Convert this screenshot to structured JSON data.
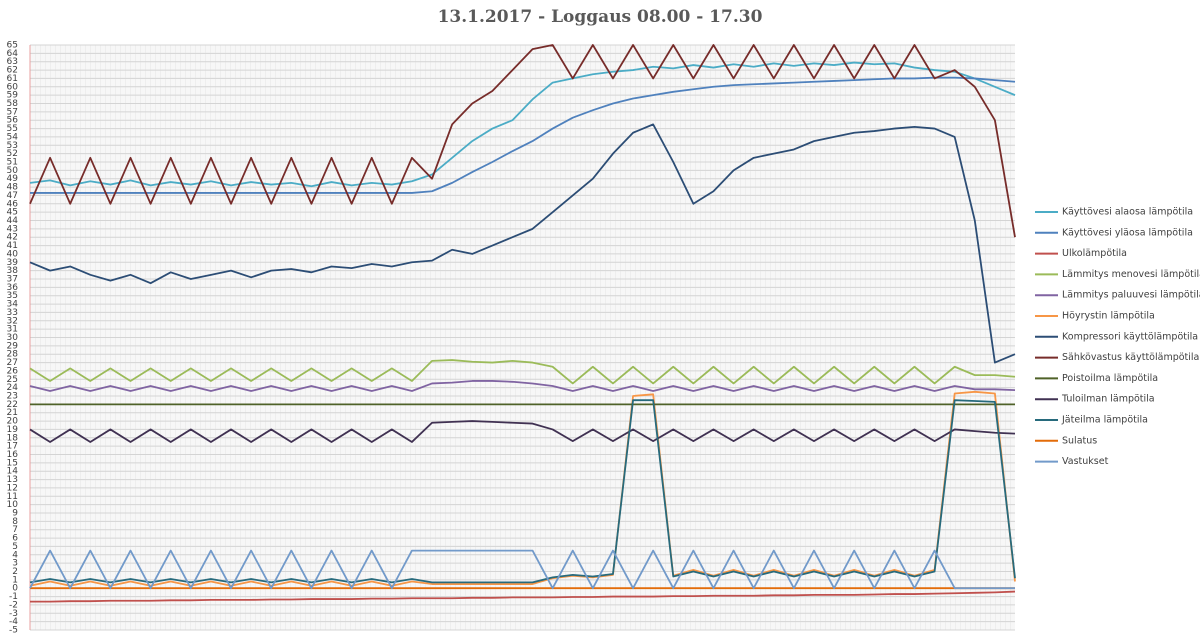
{
  "chart_data": {
    "type": "line",
    "title": "13.1.2017 - Loggaus 08.00 - 17.30",
    "ylim": [
      -5,
      65
    ],
    "yticks": [
      -5,
      -4,
      -3,
      -2,
      -1,
      0,
      1,
      2,
      3,
      4,
      5,
      6,
      7,
      8,
      9,
      10,
      11,
      12,
      13,
      14,
      15,
      16,
      17,
      18,
      19,
      20,
      21,
      22,
      23,
      24,
      25,
      26,
      27,
      28,
      29,
      30,
      31,
      32,
      33,
      34,
      35,
      36,
      37,
      38,
      39,
      40,
      41,
      42,
      43,
      44,
      45,
      46,
      47,
      48,
      49,
      50,
      51,
      52,
      53,
      54,
      55,
      56,
      57,
      58,
      59,
      60,
      61,
      62,
      63,
      64,
      65
    ],
    "grid": true,
    "legend": "right",
    "series": [
      {
        "name": "Käyttövesi alaosa lämpötila",
        "color": "#4bacc6",
        "values": [
          48.5,
          48.8,
          48.2,
          48.7,
          48.3,
          48.8,
          48.2,
          48.6,
          48.3,
          48.7,
          48.2,
          48.6,
          48.3,
          48.5,
          48.1,
          48.6,
          48.2,
          48.5,
          48.3,
          48.7,
          49.5,
          51.5,
          53.5,
          55,
          56,
          58.5,
          60.5,
          61,
          61.5,
          61.8,
          62,
          62.4,
          62.2,
          62.6,
          62.3,
          62.7,
          62.4,
          62.8,
          62.5,
          62.8,
          62.6,
          62.9,
          62.7,
          62.8,
          62.3,
          62,
          61.8,
          61,
          60,
          59
        ]
      },
      {
        "name": "Käyttövesi yläosa lämpötila",
        "color": "#4f81bd",
        "values": [
          47.3,
          47.3,
          47.3,
          47.3,
          47.3,
          47.3,
          47.3,
          47.3,
          47.3,
          47.3,
          47.3,
          47.3,
          47.3,
          47.3,
          47.3,
          47.3,
          47.3,
          47.3,
          47.3,
          47.3,
          47.5,
          48.5,
          49.8,
          51,
          52.3,
          53.5,
          55,
          56.3,
          57.2,
          58,
          58.6,
          59,
          59.4,
          59.7,
          60,
          60.2,
          60.3,
          60.4,
          60.5,
          60.6,
          60.7,
          60.8,
          60.9,
          61,
          61,
          61.1,
          61.1,
          61,
          60.8,
          60.6
        ]
      },
      {
        "name": "Ulkolämpötila",
        "color": "#c0504d",
        "values": [
          -1.6,
          -1.6,
          -1.55,
          -1.55,
          -1.5,
          -1.5,
          -1.5,
          -1.45,
          -1.45,
          -1.4,
          -1.4,
          -1.4,
          -1.35,
          -1.35,
          -1.3,
          -1.3,
          -1.3,
          -1.25,
          -1.25,
          -1.2,
          -1.2,
          -1.2,
          -1.15,
          -1.15,
          -1.1,
          -1.1,
          -1.1,
          -1.05,
          -1.05,
          -1,
          -1,
          -1,
          -0.95,
          -0.95,
          -0.9,
          -0.9,
          -0.9,
          -0.85,
          -0.85,
          -0.8,
          -0.8,
          -0.8,
          -0.75,
          -0.7,
          -0.7,
          -0.65,
          -0.6,
          -0.55,
          -0.5,
          -0.4
        ]
      },
      {
        "name": "Lämmitys menovesi lämpötila",
        "color": "#9bbb59",
        "values": [
          26.3,
          24.8,
          26.3,
          24.8,
          26.3,
          24.8,
          26.3,
          24.8,
          26.3,
          24.8,
          26.3,
          24.8,
          26.3,
          24.8,
          26.3,
          24.8,
          26.3,
          24.8,
          26.3,
          24.8,
          27.2,
          27.3,
          27.1,
          27,
          27.2,
          27,
          26.5,
          24.5,
          26.5,
          24.5,
          26.5,
          24.5,
          26.5,
          24.5,
          26.5,
          24.5,
          26.5,
          24.5,
          26.5,
          24.5,
          26.5,
          24.5,
          26.5,
          24.5,
          26.5,
          24.5,
          26.5,
          25.5,
          25.5,
          25.3
        ]
      },
      {
        "name": "Lämmitys paluuvesi lämpötila",
        "color": "#8064a2",
        "values": [
          24.2,
          23.6,
          24.2,
          23.6,
          24.2,
          23.6,
          24.2,
          23.6,
          24.2,
          23.6,
          24.2,
          23.6,
          24.2,
          23.6,
          24.2,
          23.6,
          24.2,
          23.6,
          24.2,
          23.6,
          24.5,
          24.6,
          24.8,
          24.8,
          24.7,
          24.5,
          24.2,
          23.6,
          24.2,
          23.6,
          24.2,
          23.6,
          24.2,
          23.6,
          24.2,
          23.6,
          24.2,
          23.6,
          24.2,
          23.6,
          24.2,
          23.6,
          24.2,
          23.6,
          24.2,
          23.6,
          24.2,
          23.8,
          23.8,
          23.7
        ]
      },
      {
        "name": "Höyrystin lämpötila",
        "color": "#f79646",
        "values": [
          0.3,
          0.8,
          0.3,
          0.8,
          0.3,
          0.8,
          0.3,
          0.8,
          0.3,
          0.8,
          0.3,
          0.8,
          0.3,
          0.8,
          0.3,
          0.8,
          0.3,
          0.8,
          0.3,
          0.8,
          0.5,
          0.5,
          0.5,
          0.5,
          0.5,
          0.5,
          1.2,
          1.5,
          1.3,
          1.6,
          23,
          23.2,
          1.5,
          2.2,
          1.5,
          2.2,
          1.5,
          2.2,
          1.5,
          2.2,
          1.5,
          2.2,
          1.5,
          2.2,
          1.5,
          2.2,
          23.3,
          23.5,
          23.3,
          0.8
        ]
      },
      {
        "name": "Kompressori käyttölämpötila",
        "color": "#2c4d75",
        "values": [
          39,
          38,
          38.5,
          37.5,
          36.8,
          37.5,
          36.5,
          37.8,
          37,
          37.5,
          38,
          37.2,
          38,
          38.2,
          37.8,
          38.5,
          38.3,
          38.8,
          38.5,
          39,
          39.2,
          40.5,
          40,
          41,
          42,
          43,
          45,
          47,
          49,
          52,
          54.5,
          55.5,
          51,
          46,
          47.5,
          50,
          51.5,
          52,
          52.5,
          53.5,
          54,
          54.5,
          54.7,
          55,
          55.2,
          55,
          54,
          44,
          27,
          28
        ]
      },
      {
        "name": "Sähkövastus käyttölämpötila",
        "color": "#772c2a",
        "values": [
          46,
          51.5,
          46,
          51.5,
          46,
          51.5,
          46,
          51.5,
          46,
          51.5,
          46,
          51.5,
          46,
          51.5,
          46,
          51.5,
          46,
          51.5,
          46,
          51.5,
          49,
          55.5,
          58,
          59.5,
          62,
          64.5,
          65,
          61,
          65,
          61,
          65,
          61,
          65,
          61,
          65,
          61,
          65,
          61,
          65,
          61,
          65,
          61,
          65,
          61,
          65,
          61,
          62,
          60,
          56,
          42
        ]
      },
      {
        "name": "Poistoilma lämpötila",
        "color": "#4f6228",
        "values": [
          22,
          22,
          22,
          22,
          22,
          22,
          22,
          22,
          22,
          22,
          22,
          22,
          22,
          22,
          22,
          22,
          22,
          22,
          22,
          22,
          22,
          22,
          22,
          22,
          22,
          22,
          22,
          22,
          22,
          22,
          22,
          22,
          22,
          22,
          22,
          22,
          22,
          22,
          22,
          22,
          22,
          22,
          22,
          22,
          22,
          22,
          22,
          22,
          22,
          22
        ]
      },
      {
        "name": "Tuloilman lämpötila",
        "color": "#403152",
        "values": [
          19,
          17.5,
          19,
          17.5,
          19,
          17.5,
          19,
          17.5,
          19,
          17.5,
          19,
          17.5,
          19,
          17.5,
          19,
          17.5,
          19,
          17.5,
          19,
          17.5,
          19.8,
          19.9,
          20,
          19.9,
          19.8,
          19.7,
          19,
          17.6,
          19,
          17.6,
          19,
          17.6,
          19,
          17.6,
          19,
          17.6,
          19,
          17.6,
          19,
          17.6,
          19,
          17.6,
          19,
          17.6,
          19,
          17.6,
          19,
          18.8,
          18.6,
          18.5
        ]
      },
      {
        "name": "Jäteilma lämpötila",
        "color": "#276a7c",
        "values": [
          0.7,
          1.1,
          0.7,
          1.1,
          0.7,
          1.1,
          0.7,
          1.1,
          0.7,
          1.1,
          0.7,
          1.1,
          0.7,
          1.1,
          0.7,
          1.1,
          0.7,
          1.1,
          0.7,
          1.1,
          0.7,
          0.7,
          0.7,
          0.7,
          0.7,
          0.7,
          1.3,
          1.6,
          1.4,
          1.7,
          22.5,
          22.5,
          1.4,
          2,
          1.4,
          2,
          1.4,
          2,
          1.4,
          2,
          1.4,
          2,
          1.4,
          2,
          1.4,
          2,
          22.5,
          22.4,
          22.3,
          1.2
        ]
      },
      {
        "name": "Sulatus",
        "color": "#e36c09",
        "values": [
          0,
          0,
          0,
          0,
          0,
          0,
          0,
          0,
          0,
          0,
          0,
          0,
          0,
          0,
          0,
          0,
          0,
          0,
          0,
          0,
          0,
          0,
          0,
          0,
          0,
          0,
          0,
          0,
          0,
          0,
          0,
          0,
          0,
          0,
          0,
          0,
          0,
          0,
          0,
          0,
          0,
          0,
          0,
          0,
          0,
          0,
          0,
          0,
          0,
          0
        ]
      },
      {
        "name": "Vastukset",
        "color": "#729aca",
        "values": [
          0,
          4.5,
          0,
          4.5,
          0,
          4.5,
          0,
          4.5,
          0,
          4.5,
          0,
          4.5,
          0,
          4.5,
          0,
          4.5,
          0,
          4.5,
          0,
          4.5,
          4.5,
          4.5,
          4.5,
          4.5,
          4.5,
          4.5,
          0,
          4.5,
          0,
          4.5,
          0,
          4.5,
          0,
          4.5,
          0,
          4.5,
          0,
          4.5,
          0,
          4.5,
          0,
          4.5,
          0,
          4.5,
          0,
          4.5,
          0,
          0,
          0,
          0
        ]
      }
    ]
  }
}
